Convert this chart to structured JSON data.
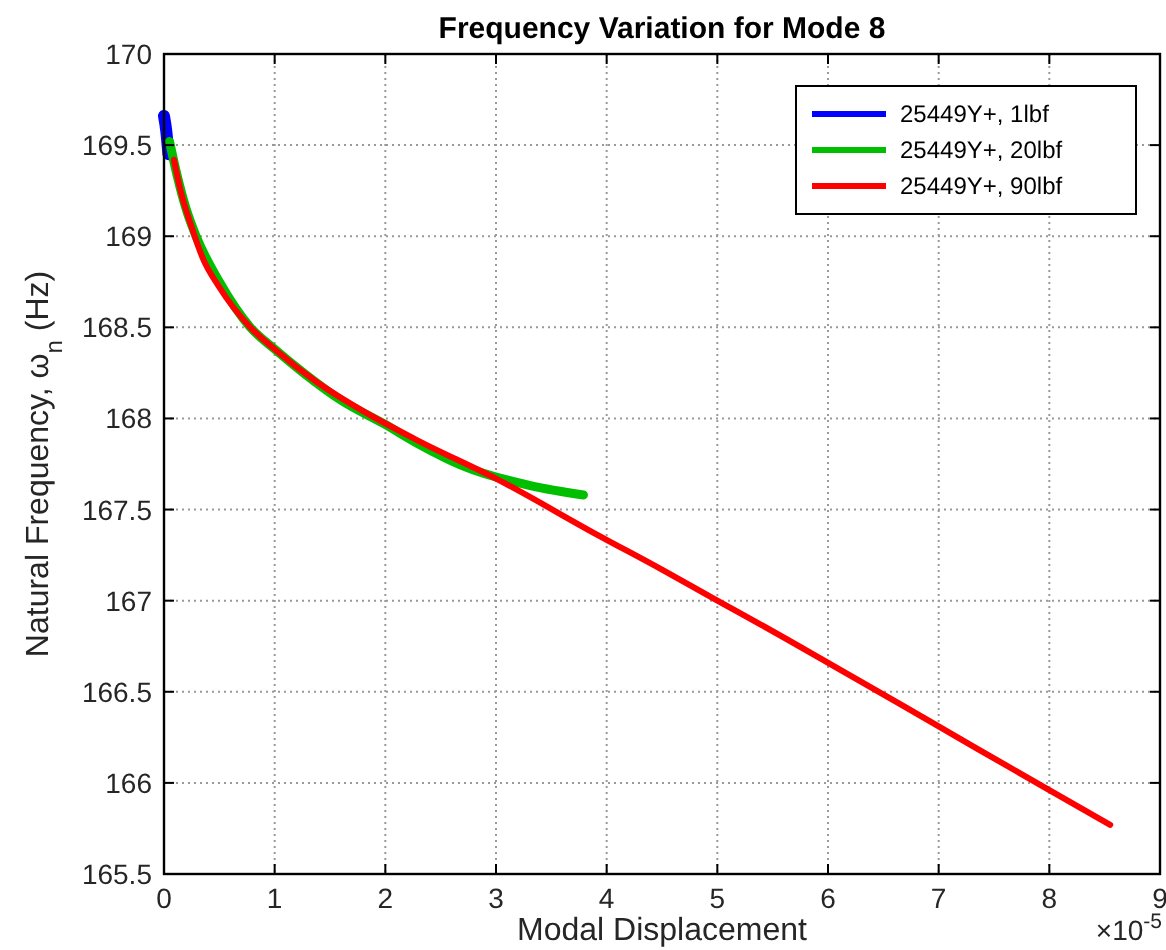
{
  "chart_data": {
    "type": "line",
    "title": "Frequency Variation for Mode 8",
    "xlabel": "Modal Displacement",
    "ylabel": "Natural Frequency, ω$_{n}$ (Hz)",
    "annotations": [
      "×10$^{-5}$"
    ],
    "xlim": [
      0,
      9
    ],
    "xticks": [
      0,
      1,
      2,
      3,
      4,
      5,
      6,
      7,
      8,
      9
    ],
    "ylim": [
      165.5,
      170
    ],
    "yticks": [
      165.5,
      166,
      166.5,
      167,
      167.5,
      168,
      168.5,
      169,
      169.5,
      170
    ],
    "grid": true,
    "legend": "top right",
    "marker": "none",
    "line_style": "solid",
    "series": [
      {
        "name": "25449Y+, 1lbf",
        "color": "#0000ff",
        "x": [
          0,
          0.02,
          0.04
        ],
        "values": [
          169.66,
          169.58,
          169.45
        ]
      },
      {
        "name": "25449Y+, 20lbf",
        "color": "#00bf00",
        "x": [
          0.05,
          0.12,
          0.2,
          0.29,
          0.5,
          0.78,
          1.0,
          1.26,
          1.6,
          1.99,
          2.3,
          2.7,
          3.32,
          3.79
        ],
        "values": [
          169.52,
          169.33,
          169.15,
          169.0,
          168.75,
          168.5,
          168.38,
          168.25,
          168.1,
          167.97,
          167.86,
          167.74,
          167.63,
          167.58
        ]
      },
      {
        "name": "25449Y+, 90lbf",
        "color": "#ff0000",
        "x": [
          0.09,
          0.15,
          0.25,
          0.35,
          0.5,
          0.78,
          1.0,
          1.38,
          1.8,
          2.29,
          3.0,
          3.92,
          4.5,
          5.0,
          5.36,
          5.97,
          7.0,
          8.0,
          8.55
        ],
        "values": [
          169.42,
          169.25,
          169.05,
          168.88,
          168.72,
          168.5,
          168.38,
          168.2,
          168.04,
          167.88,
          167.67,
          167.36,
          167.17,
          167.0,
          166.88,
          166.67,
          166.31,
          165.96,
          165.77
        ]
      }
    ]
  }
}
